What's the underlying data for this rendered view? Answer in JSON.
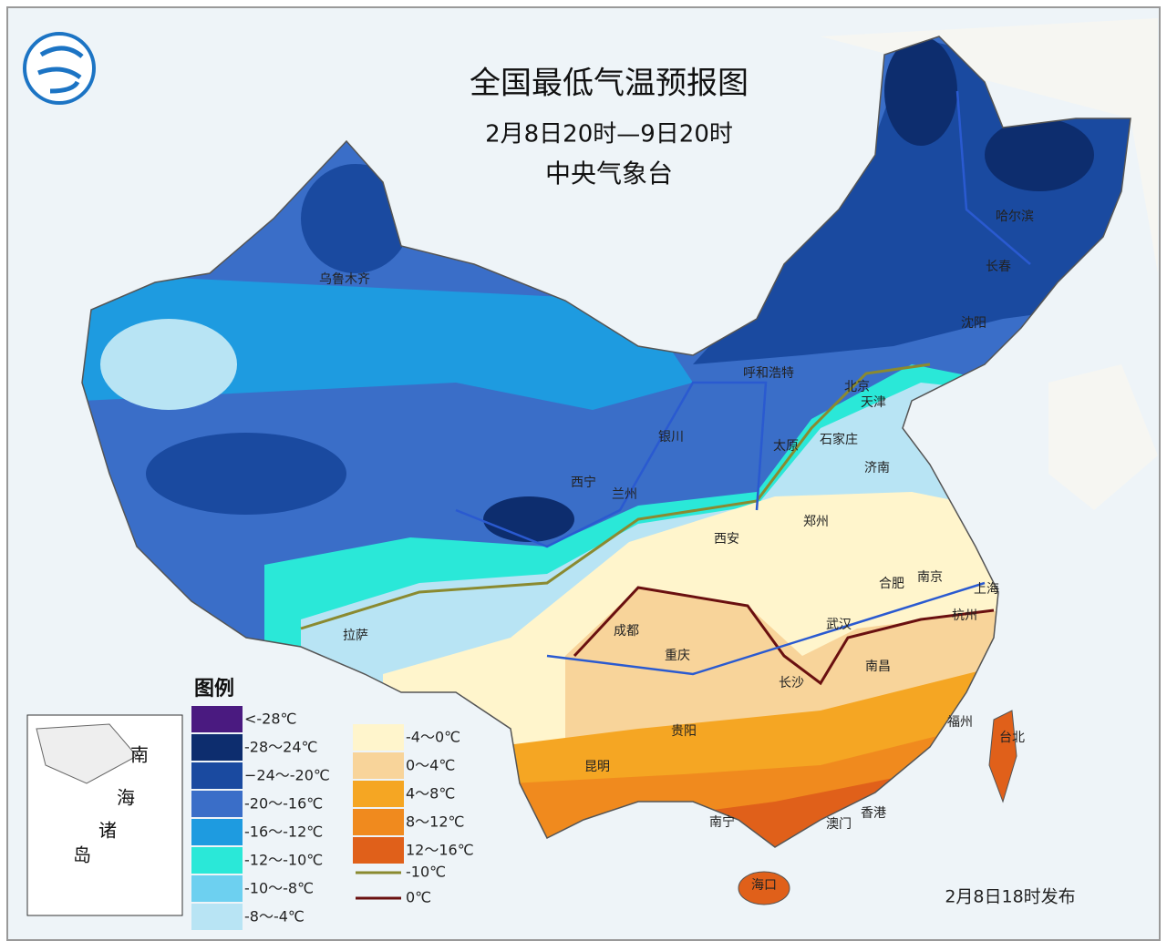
{
  "header": {
    "title": "全国最低气温预报图",
    "time_range": "2月8日20时—9日20时",
    "agency": "中央气象台"
  },
  "cities": [
    "乌鲁木齐",
    "哈尔滨",
    "长春",
    "沈阳",
    "呼和浩特",
    "北京",
    "天津",
    "银川",
    "太原",
    "石家庄",
    "济南",
    "西宁",
    "兰州",
    "郑州",
    "西安",
    "合肥",
    "南京",
    "上海",
    "杭州",
    "拉萨",
    "成都",
    "武汉",
    "重庆",
    "南昌",
    "长沙",
    "贵阳",
    "福州",
    "台北",
    "昆明",
    "南宁",
    "香港",
    "澳门",
    "海口"
  ],
  "legend": {
    "title": "图例",
    "items": [
      {
        "label": "<-28℃",
        "color": "#4a1a80"
      },
      {
        "label": "-28～24℃",
        "color": "#0d2d6e"
      },
      {
        "label": "−24～-20℃",
        "color": "#1a4aa0"
      },
      {
        "label": "-20～-16℃",
        "color": "#3a6ec8"
      },
      {
        "label": "-16～-12℃",
        "color": "#1e9be0"
      },
      {
        "label": "-12～-10℃",
        "color": "#2ae8d8"
      },
      {
        "label": "-10～-8℃",
        "color": "#6dd0f0"
      },
      {
        "label": "-8～-4℃",
        "color": "#b8e4f4"
      },
      {
        "label": "-4～0℃",
        "color": "#fff5cc"
      },
      {
        "label": "0～4℃",
        "color": "#f8d49a"
      },
      {
        "label": "4～8℃",
        "color": "#f5a623"
      },
      {
        "label": "8～12℃",
        "color": "#f08a1e"
      },
      {
        "label": "12～16℃",
        "color": "#e0601a"
      }
    ],
    "lines": [
      {
        "label": "-10℃",
        "color": "#8a8a30"
      },
      {
        "label": "0℃",
        "color": "#6a1010"
      }
    ]
  },
  "inset": {
    "labels": [
      "南",
      "海",
      "诸",
      "岛"
    ]
  },
  "footer": {
    "issued": "2月8日18时发布"
  }
}
